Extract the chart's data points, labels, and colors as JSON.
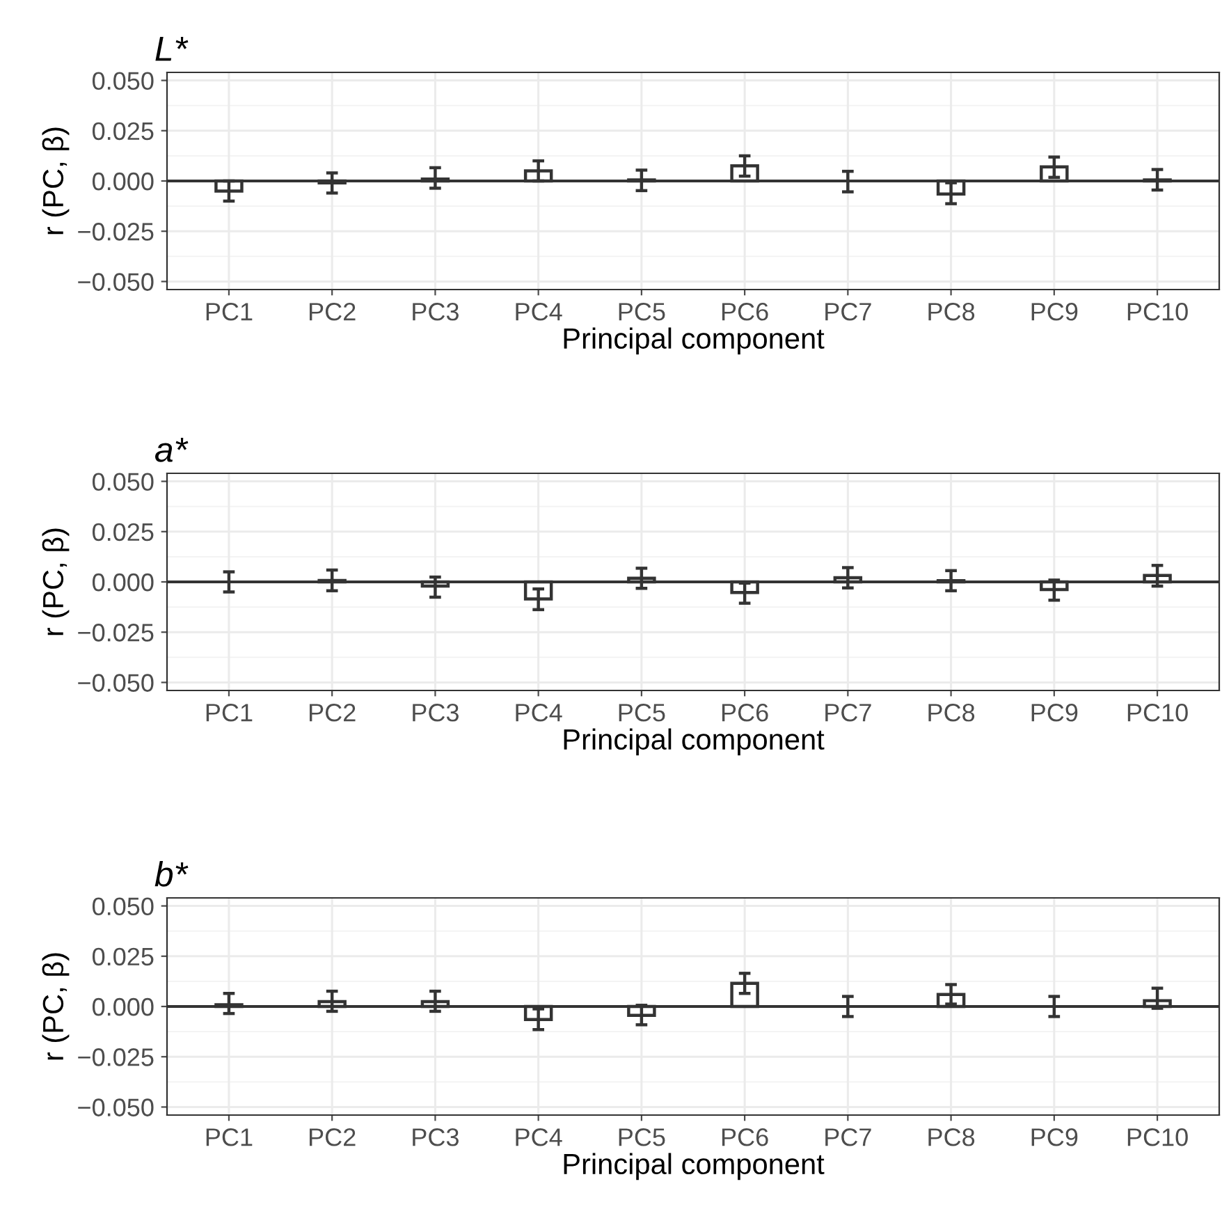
{
  "chart_data": [
    {
      "type": "bar",
      "title": "L*",
      "xlabel": "Principal component",
      "ylabel": "r (PC, β)",
      "categories": [
        "PC1",
        "PC2",
        "PC3",
        "PC4",
        "PC5",
        "PC6",
        "PC7",
        "PC8",
        "PC9",
        "PC10"
      ],
      "values": [
        -0.005,
        -0.001,
        0.001,
        0.005,
        0.0005,
        0.0075,
        0.0,
        -0.0065,
        0.007,
        0.0005
      ],
      "errors": [
        [
          -0.01,
          0.0
        ],
        [
          -0.006,
          0.004
        ],
        [
          -0.0036,
          0.0066
        ],
        [
          0.0,
          0.01
        ],
        [
          -0.0048,
          0.0054
        ],
        [
          0.0024,
          0.0125
        ],
        [
          -0.0054,
          0.0048
        ],
        [
          -0.0113,
          -0.0009
        ],
        [
          0.0018,
          0.0119
        ],
        [
          -0.0045,
          0.0057
        ]
      ],
      "color": "#ffffff",
      "ylim": [
        -0.054,
        0.054
      ],
      "yticks": [
        {
          "value": -0.05,
          "label": "−0.050"
        },
        {
          "value": -0.025,
          "label": "−0.025"
        },
        {
          "value": 0,
          "label": "0.000"
        },
        {
          "value": 0.025,
          "label": "0.025"
        },
        {
          "value": 0.05,
          "label": "0.050"
        }
      ],
      "ref_lines": [
        {
          "axis": "y",
          "value": 0,
          "color": "#333333"
        }
      ],
      "grid": true,
      "legend": false
    },
    {
      "type": "bar",
      "title": "a*",
      "xlabel": "Principal component",
      "ylabel": "r (PC, β)",
      "categories": [
        "PC1",
        "PC2",
        "PC3",
        "PC4",
        "PC5",
        "PC6",
        "PC7",
        "PC8",
        "PC9",
        "PC10"
      ],
      "values": [
        0.0,
        0.0007,
        -0.0021,
        -0.0085,
        0.0018,
        -0.0053,
        0.0021,
        0.0006,
        -0.0038,
        0.0032
      ],
      "errors": [
        [
          -0.005,
          0.005
        ],
        [
          -0.0044,
          0.0059
        ],
        [
          -0.0076,
          0.0024
        ],
        [
          -0.0138,
          -0.0035
        ],
        [
          -0.0032,
          0.0068
        ],
        [
          -0.0106,
          -0.0006
        ],
        [
          -0.003,
          0.0071
        ],
        [
          -0.0044,
          0.0056
        ],
        [
          -0.0091,
          0.0009
        ],
        [
          -0.0021,
          0.0082
        ]
      ],
      "color": "#ffffff",
      "ylim": [
        -0.054,
        0.054
      ],
      "yticks": [
        {
          "value": -0.05,
          "label": "−0.050"
        },
        {
          "value": -0.025,
          "label": "−0.025"
        },
        {
          "value": 0,
          "label": "0.000"
        },
        {
          "value": 0.025,
          "label": "0.025"
        },
        {
          "value": 0.05,
          "label": "0.050"
        }
      ],
      "ref_lines": [
        {
          "axis": "y",
          "value": 0,
          "color": "#333333"
        }
      ],
      "grid": true,
      "legend": false
    },
    {
      "type": "bar",
      "title": "b*",
      "xlabel": "Principal component",
      "ylabel": "r (PC, β)",
      "categories": [
        "PC1",
        "PC2",
        "PC3",
        "PC4",
        "PC5",
        "PC6",
        "PC7",
        "PC8",
        "PC9",
        "PC10"
      ],
      "values": [
        0.0009,
        0.0024,
        0.0024,
        -0.0065,
        -0.0044,
        0.0115,
        0.0,
        0.006,
        0.0,
        0.0029
      ],
      "errors": [
        [
          -0.0035,
          0.0065
        ],
        [
          -0.0024,
          0.0076
        ],
        [
          -0.0024,
          0.0076
        ],
        [
          -0.0115,
          -0.0012
        ],
        [
          -0.0091,
          0.0006
        ],
        [
          0.0065,
          0.0165
        ],
        [
          -0.005,
          0.005
        ],
        [
          0.0012,
          0.0109
        ],
        [
          -0.005,
          0.005
        ],
        [
          -0.0009,
          0.0091
        ]
      ],
      "color": "#ffffff",
      "ylim": [
        -0.054,
        0.054
      ],
      "yticks": [
        {
          "value": -0.05,
          "label": "−0.050"
        },
        {
          "value": -0.025,
          "label": "−0.025"
        },
        {
          "value": 0,
          "label": "0.000"
        },
        {
          "value": 0.025,
          "label": "0.025"
        },
        {
          "value": 0.05,
          "label": "0.050"
        }
      ],
      "ref_lines": [
        {
          "axis": "y",
          "value": 0,
          "color": "#333333"
        }
      ],
      "grid": true,
      "legend": false
    }
  ]
}
